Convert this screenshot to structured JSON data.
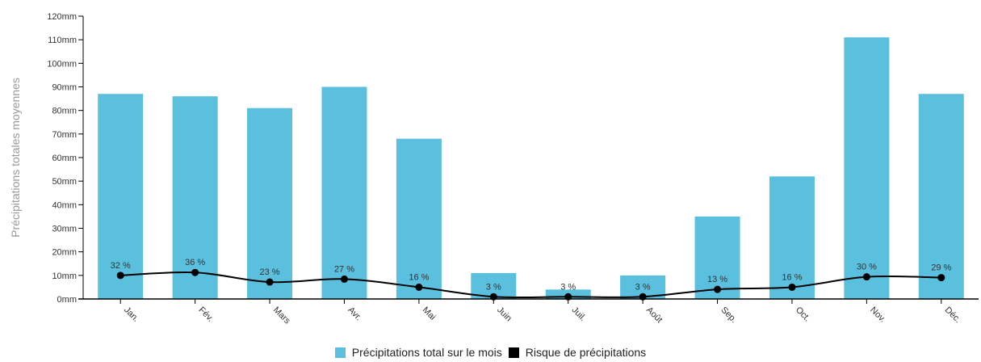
{
  "chart_data": {
    "type": "bar",
    "categories": [
      "Jan.",
      "Fév.",
      "Mars",
      "Avr.",
      "Mai",
      "Juin",
      "Juil.",
      "Août",
      "Sep.",
      "Oct.",
      "Nov.",
      "Déc."
    ],
    "series": [
      {
        "name": "Précipitations total sur le mois",
        "type": "bar",
        "color": "#5bbfde",
        "values": [
          87,
          86,
          81,
          90,
          68,
          11,
          4,
          10,
          35,
          52,
          111,
          87
        ]
      },
      {
        "name": "Risque de précipitations",
        "type": "line",
        "color": "#000000",
        "values": [
          32,
          36,
          23,
          27,
          16,
          3,
          3,
          3,
          13,
          16,
          30,
          29
        ],
        "labels": [
          "32 %",
          "36 %",
          "23 %",
          "27 %",
          "16 %",
          "3 %",
          "3 %",
          "3 %",
          "13 %",
          "16 %",
          "30 %",
          "29 %"
        ]
      }
    ],
    "ylabel": "Précipitations totales moyennes",
    "xlabel": "",
    "ylim": [
      0,
      120
    ],
    "ytick_values": [
      0,
      10,
      20,
      30,
      40,
      50,
      60,
      70,
      80,
      90,
      100,
      110,
      120
    ],
    "yticks": [
      "0mm",
      "10mm",
      "20mm",
      "30mm",
      "40mm",
      "50mm",
      "60mm",
      "70mm",
      "80mm",
      "90mm",
      "100mm",
      "110mm",
      "120mm"
    ],
    "line_scale_max": 384,
    "grid": false,
    "legend_position": "bottom"
  }
}
